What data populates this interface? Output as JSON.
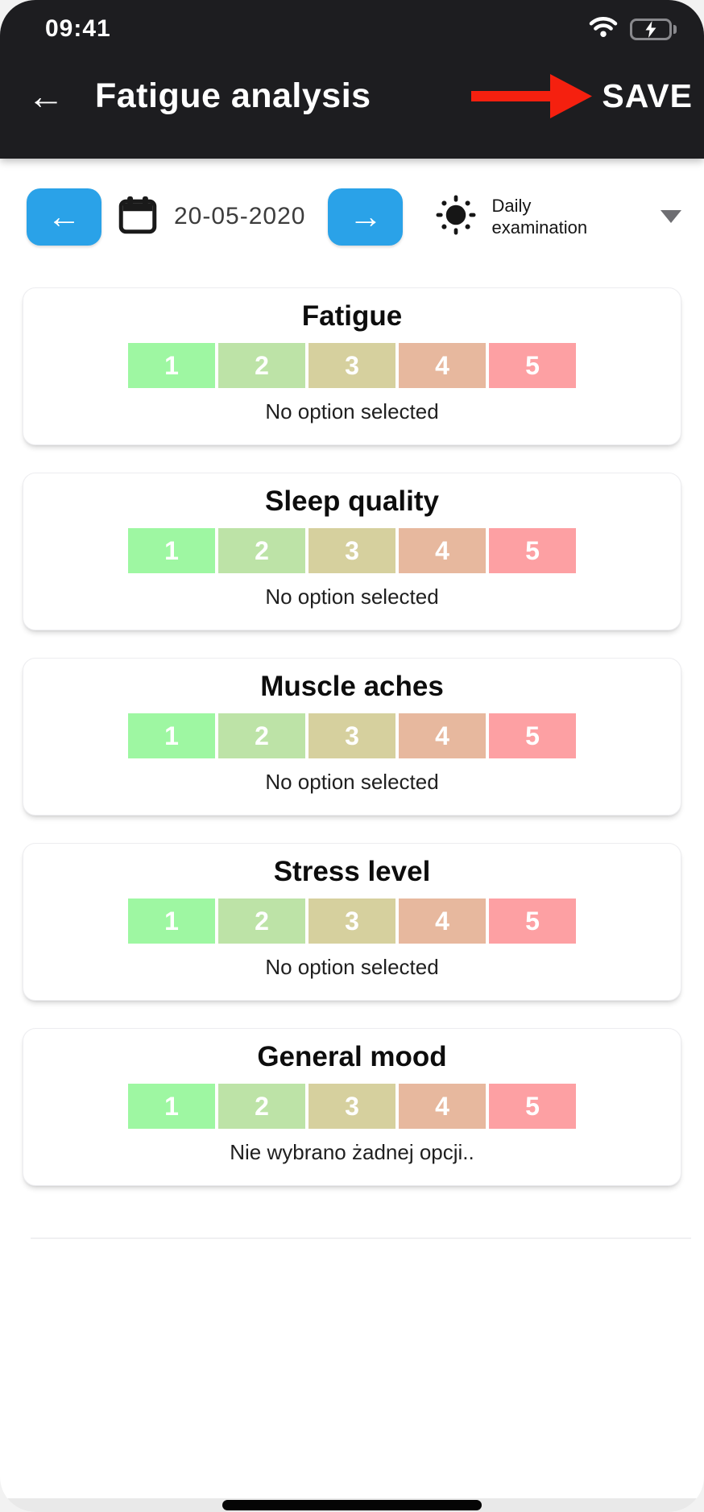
{
  "status_bar": {
    "time": "09:41"
  },
  "header": {
    "back_icon": "←",
    "title": "Fatigue analysis",
    "save_label": "SAVE"
  },
  "toolbar": {
    "prev_icon": "←",
    "next_icon": "→",
    "date": "20-05-2020",
    "exam_type": {
      "line1": "Daily",
      "line2": "examination"
    }
  },
  "rating_scale": [
    "1",
    "2",
    "3",
    "4",
    "5"
  ],
  "cards": [
    {
      "title": "Fatigue",
      "status": "No option selected"
    },
    {
      "title": "Sleep quality",
      "status": "No option selected"
    },
    {
      "title": "Muscle aches",
      "status": "No option selected"
    },
    {
      "title": "Stress level",
      "status": "No option selected"
    },
    {
      "title": "General mood",
      "status": "Nie wybrano żadnej opcji.."
    }
  ],
  "colors": {
    "header_bg": "#1d1d20",
    "accent_blue": "#2aa2e8",
    "arrow_red": "#f5200f",
    "battery_green": "#40d15e",
    "option_colors": [
      "#9ef7a2",
      "#bde3a7",
      "#d6d09e",
      "#e7b89e",
      "#fda0a3"
    ]
  }
}
